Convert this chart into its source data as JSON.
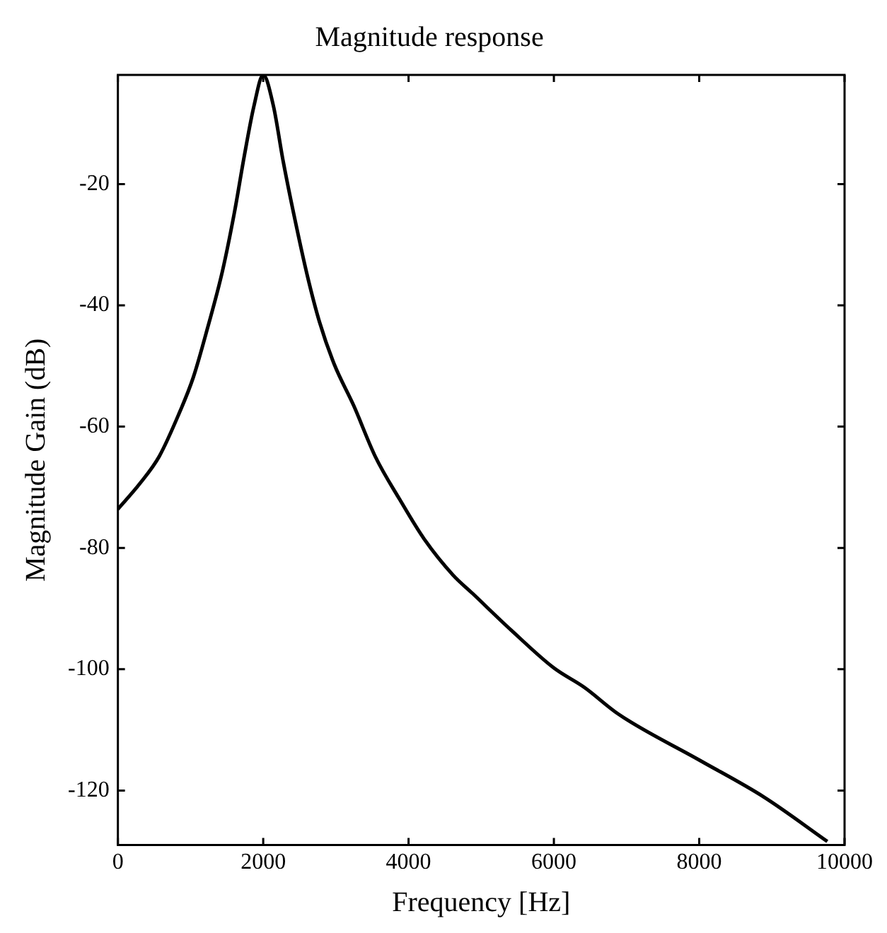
{
  "chart_data": {
    "type": "line",
    "title": "Magnitude response",
    "xlabel": "Frequency [Hz]",
    "ylabel": "Magnitude Gain (dB)",
    "xlim": [
      0,
      10000
    ],
    "ylim": [
      -129,
      -2
    ],
    "xticks": [
      0,
      2000,
      4000,
      6000,
      8000,
      10000
    ],
    "yticks": [
      -20,
      -40,
      -60,
      -80,
      -100,
      -120
    ],
    "grid": false,
    "legend": false,
    "marker": "none",
    "line_style": "solid",
    "series": [
      {
        "color": "#000000",
        "x": [
          0,
          301,
          569,
          836,
          1037,
          1237,
          1438,
          1605,
          1739,
          1873,
          2000,
          2140,
          2274,
          2441,
          2609,
          2776,
          2977,
          3244,
          3545,
          3878,
          4213,
          4614,
          4880,
          5416,
          6000,
          6419,
          6887,
          8004,
          8893,
          9763
        ],
        "values": [
          -73.6,
          -69.4,
          -64.9,
          -58,
          -51.9,
          -43.6,
          -34.4,
          -24.6,
          -15.4,
          -7.1,
          -2,
          -7.1,
          -16.2,
          -26.1,
          -35.2,
          -42.8,
          -49.7,
          -56.5,
          -65,
          -72,
          -78.5,
          -84.5,
          -87.5,
          -93.6,
          -99.8,
          -103,
          -107.4,
          -115,
          -121.1,
          -128.4
        ]
      }
    ]
  }
}
